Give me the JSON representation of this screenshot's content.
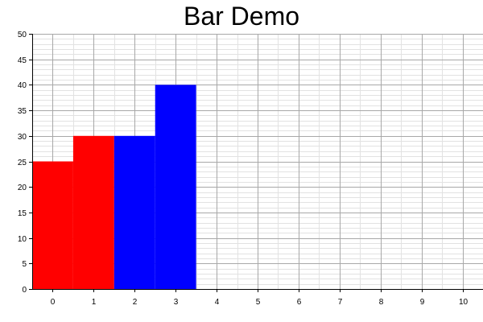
{
  "chart_data": {
    "type": "bar",
    "title": "Bar Demo",
    "xlabel": "",
    "ylabel": "",
    "xlim": [
      -0.5,
      10.5
    ],
    "ylim": [
      0,
      50
    ],
    "grid": true,
    "x_ticks": [
      0,
      1,
      2,
      3,
      4,
      5,
      6,
      7,
      8,
      9,
      10
    ],
    "y_ticks": [
      0,
      5,
      10,
      15,
      20,
      25,
      30,
      35,
      40,
      45,
      50
    ],
    "series": [
      {
        "color": "#ff0000",
        "points": [
          {
            "x": 0,
            "y": 25
          },
          {
            "x": 1,
            "y": 30
          }
        ]
      },
      {
        "color": "#0000ff",
        "points": [
          {
            "x": 2,
            "y": 30
          },
          {
            "x": 3,
            "y": 40
          }
        ]
      }
    ]
  }
}
